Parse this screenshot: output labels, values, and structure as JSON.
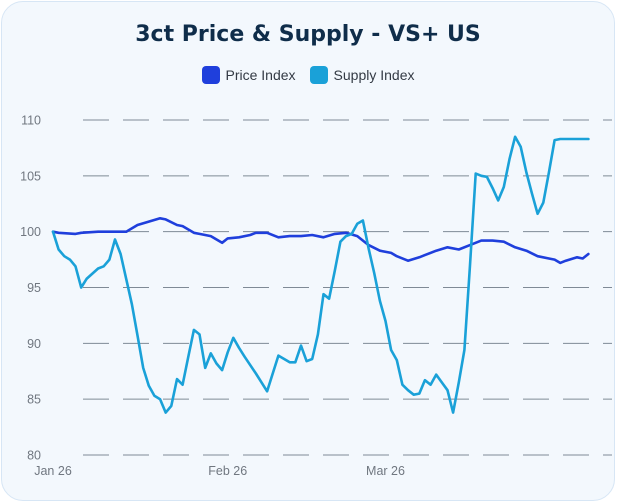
{
  "title": "3ct Price & Supply - VS+ US",
  "legend": [
    {
      "label": "Price Index",
      "color": "#1f3fdc"
    },
    {
      "label": "Supply Index",
      "color": "#1aa1d8"
    }
  ],
  "chart_data": {
    "type": "line",
    "title": "3ct Price & Supply - VS+ US",
    "xlabel": "",
    "ylabel": "",
    "ylim": [
      80,
      110
    ],
    "yticks": [
      80,
      85,
      90,
      95,
      100,
      105,
      110
    ],
    "xlim": [
      "2026-01-01",
      "2026-04-07"
    ],
    "xticks": [
      {
        "date": "2026-01-01",
        "label": "Jan 26"
      },
      {
        "date": "2026-02-01",
        "label": "Feb 26"
      },
      {
        "date": "2026-03-01",
        "label": "Mar 26"
      }
    ],
    "grid": true,
    "legend_position": "top-center",
    "series": [
      {
        "name": "Price Index",
        "color": "#1f3fdc",
        "x": [
          "2026-01-01",
          "2026-01-02",
          "2026-01-05",
          "2026-01-06",
          "2026-01-09",
          "2026-01-11",
          "2026-01-14",
          "2026-01-16",
          "2026-01-18",
          "2026-01-20",
          "2026-01-21",
          "2026-01-23",
          "2026-01-24",
          "2026-01-26",
          "2026-01-27",
          "2026-01-29",
          "2026-01-31",
          "2026-02-01",
          "2026-02-03",
          "2026-02-05",
          "2026-02-06",
          "2026-02-08",
          "2026-02-10",
          "2026-02-12",
          "2026-02-14",
          "2026-02-16",
          "2026-02-18",
          "2026-02-20",
          "2026-02-22",
          "2026-02-24",
          "2026-02-26",
          "2026-02-28",
          "2026-03-02",
          "2026-03-03",
          "2026-03-05",
          "2026-03-07",
          "2026-03-08",
          "2026-03-10",
          "2026-03-12",
          "2026-03-14",
          "2026-03-16",
          "2026-03-18",
          "2026-03-20",
          "2026-03-22",
          "2026-03-24",
          "2026-03-26",
          "2026-03-28",
          "2026-03-30",
          "2026-03-31",
          "2026-04-01",
          "2026-04-02",
          "2026-04-04",
          "2026-04-05",
          "2026-04-06"
        ],
        "values": [
          100.0,
          99.9,
          99.8,
          99.9,
          100.0,
          100.0,
          100.0,
          100.6,
          100.9,
          101.2,
          101.1,
          100.6,
          100.5,
          99.9,
          99.8,
          99.6,
          99.0,
          99.4,
          99.5,
          99.7,
          99.9,
          99.9,
          99.5,
          99.6,
          99.6,
          99.7,
          99.5,
          99.8,
          99.9,
          99.6,
          98.8,
          98.3,
          98.1,
          97.8,
          97.4,
          97.7,
          97.9,
          98.3,
          98.6,
          98.4,
          98.8,
          99.2,
          99.2,
          99.1,
          98.6,
          98.3,
          97.8,
          97.6,
          97.5,
          97.2,
          97.4,
          97.7,
          97.6,
          98.0
        ]
      },
      {
        "name": "Supply Index",
        "color": "#1aa1d8",
        "x": [
          "2026-01-01",
          "2026-01-02",
          "2026-01-03",
          "2026-01-04",
          "2026-01-05",
          "2026-01-06",
          "2026-01-07",
          "2026-01-09",
          "2026-01-10",
          "2026-01-11",
          "2026-01-12",
          "2026-01-13",
          "2026-01-15",
          "2026-01-16",
          "2026-01-17",
          "2026-01-18",
          "2026-01-19",
          "2026-01-20",
          "2026-01-21",
          "2026-01-22",
          "2026-01-23",
          "2026-01-24",
          "2026-01-25",
          "2026-01-26",
          "2026-01-27",
          "2026-01-28",
          "2026-01-29",
          "2026-01-30",
          "2026-01-31",
          "2026-02-01",
          "2026-02-02",
          "2026-02-03",
          "2026-02-04",
          "2026-02-06",
          "2026-02-08",
          "2026-02-10",
          "2026-02-12",
          "2026-02-13",
          "2026-02-14",
          "2026-02-15",
          "2026-02-16",
          "2026-02-17",
          "2026-02-18",
          "2026-02-19",
          "2026-02-20",
          "2026-02-21",
          "2026-02-22",
          "2026-02-23",
          "2026-02-24",
          "2026-02-25",
          "2026-02-26",
          "2026-02-27",
          "2026-02-28",
          "2026-03-01",
          "2026-03-02",
          "2026-03-03",
          "2026-03-04",
          "2026-03-05",
          "2026-03-06",
          "2026-03-07",
          "2026-03-08",
          "2026-03-09",
          "2026-03-10",
          "2026-03-11",
          "2026-03-12",
          "2026-03-13",
          "2026-03-14",
          "2026-03-15",
          "2026-03-16",
          "2026-03-17",
          "2026-03-18",
          "2026-03-19",
          "2026-03-20",
          "2026-03-21",
          "2026-03-22",
          "2026-03-23",
          "2026-03-24",
          "2026-03-25",
          "2026-03-26",
          "2026-03-27",
          "2026-03-28",
          "2026-03-29",
          "2026-03-30",
          "2026-03-31",
          "2026-04-01",
          "2026-04-02",
          "2026-04-03",
          "2026-04-04",
          "2026-04-05",
          "2026-04-06"
        ],
        "values": [
          100.0,
          98.4,
          97.8,
          97.5,
          96.9,
          95.0,
          95.8,
          96.7,
          96.9,
          97.5,
          99.3,
          98.0,
          93.5,
          90.7,
          87.8,
          86.2,
          85.3,
          85.0,
          83.8,
          84.4,
          86.8,
          86.3,
          88.8,
          91.2,
          90.8,
          87.8,
          89.1,
          88.2,
          87.6,
          89.2,
          90.5,
          89.6,
          88.8,
          87.3,
          85.7,
          88.9,
          88.3,
          88.3,
          89.8,
          88.4,
          88.6,
          90.8,
          94.4,
          94.0,
          96.5,
          99.1,
          99.6,
          99.8,
          100.7,
          101.0,
          98.5,
          96.3,
          93.8,
          92.0,
          89.4,
          88.5,
          86.3,
          85.8,
          85.4,
          85.5,
          86.7,
          86.3,
          87.2,
          86.5,
          85.8,
          83.8,
          86.5,
          89.4,
          97.0,
          105.2,
          105.0,
          104.9,
          103.9,
          102.8,
          104.0,
          106.5,
          108.5,
          107.6,
          105.3,
          103.4,
          101.6,
          102.6,
          105.3,
          108.2,
          108.3,
          108.3,
          108.3,
          108.3,
          108.3,
          108.3
        ]
      }
    ]
  }
}
